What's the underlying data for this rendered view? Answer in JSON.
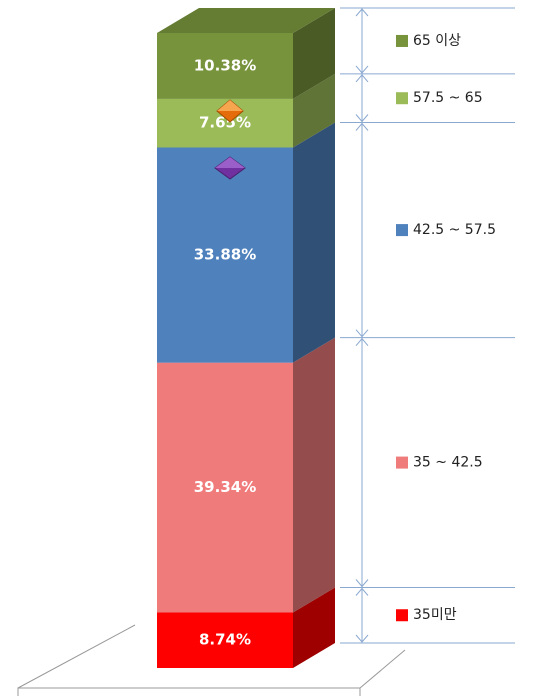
{
  "chart_data": {
    "type": "bar",
    "stacked": true,
    "categories": [
      null
    ],
    "series": [
      {
        "name": "35미만",
        "color": "#ff0000",
        "values": [
          8.74
        ],
        "value_labels": [
          "8.74%"
        ]
      },
      {
        "name": "35 ~ 42.5",
        "color": "#f07b7b",
        "values": [
          39.34
        ],
        "value_labels": [
          "39.34%"
        ]
      },
      {
        "name": "42.5 ~ 57.5",
        "color": "#4f81bd",
        "values": [
          33.88
        ],
        "value_labels": [
          "33.88%"
        ]
      },
      {
        "name": "57.5 ~ 65",
        "color": "#9bbb59",
        "values": [
          7.65
        ],
        "value_labels": [
          "7.65%"
        ]
      },
      {
        "name": "65 이상",
        "color": "#77933c",
        "values": [
          10.38
        ],
        "value_labels": [
          "10.38%"
        ]
      }
    ]
  }
}
